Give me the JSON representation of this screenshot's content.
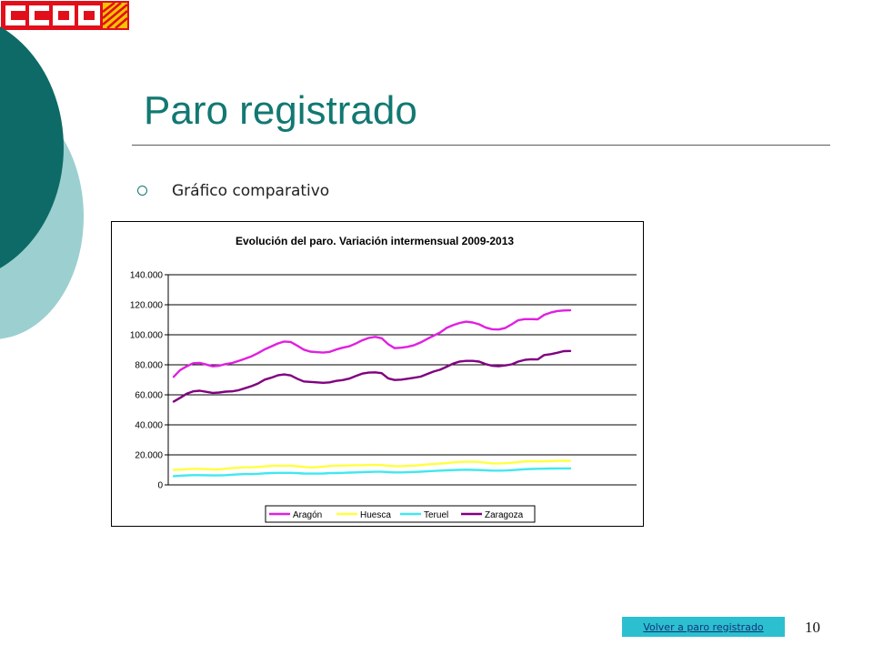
{
  "slide": {
    "title": "Paro registrado",
    "bullet": "Gráfico comparativo",
    "back_link": "Volver a paro registrado",
    "page_number": "10",
    "logo_text": "CCOO"
  },
  "colors": {
    "teal_dark": "#0d6a66",
    "teal_light": "#9ccfd0",
    "logo_red": "#e20f1b",
    "title": "#127872",
    "button": "#2cbfcf"
  },
  "chart_data": {
    "type": "line",
    "title": "Evolución del paro. Variación intermensual 2009-2013",
    "ylim": [
      0,
      140000
    ],
    "yticks": [
      "0",
      "20.000",
      "40.000",
      "60.000",
      "80.000",
      "100.000",
      "120.000",
      "140.000"
    ],
    "grid": true,
    "legend": "bottom",
    "series": [
      {
        "name": "Aragón",
        "color": "#e020e0",
        "values": [
          72000,
          76500,
          79000,
          81000,
          81300,
          80200,
          79000,
          79400,
          80500,
          81200,
          82600,
          84100,
          85700,
          87800,
          90300,
          92200,
          94200,
          95500,
          95200,
          92800,
          90100,
          88800,
          88400,
          88100,
          88600,
          90200,
          91400,
          92300,
          94100,
          96300,
          97900,
          98600,
          97700,
          93700,
          91100,
          91400,
          92000,
          93100,
          94900,
          97200,
          99400,
          101500,
          104600,
          106400,
          107900,
          108700,
          108200,
          107000,
          104800,
          103700,
          103500,
          104500,
          107000,
          109700,
          110400,
          110400,
          110300,
          113300,
          114800,
          115800,
          116200,
          116300
        ]
      },
      {
        "name": "Huesca",
        "color": "#ffff40",
        "values": [
          10000,
          10200,
          10400,
          10700,
          10700,
          10500,
          10300,
          10300,
          10800,
          11200,
          11400,
          11700,
          11700,
          12000,
          12300,
          12700,
          12800,
          12800,
          12800,
          12400,
          12000,
          11600,
          11900,
          12200,
          12600,
          12800,
          12900,
          13000,
          13100,
          13100,
          13300,
          13300,
          13200,
          12700,
          12500,
          12500,
          12700,
          12800,
          13200,
          13600,
          13900,
          14200,
          14500,
          15000,
          15300,
          15400,
          15400,
          15200,
          14800,
          14300,
          14300,
          14400,
          14700,
          15200,
          15600,
          15800,
          15600,
          15700,
          15800,
          16000,
          16000,
          16000
        ]
      },
      {
        "name": "Teruel",
        "color": "#40e8f0",
        "values": [
          5800,
          6100,
          6300,
          6500,
          6500,
          6400,
          6300,
          6300,
          6500,
          6800,
          7000,
          7200,
          7200,
          7400,
          7700,
          7900,
          8000,
          8000,
          8000,
          7800,
          7600,
          7500,
          7500,
          7600,
          7800,
          7900,
          8000,
          8200,
          8300,
          8400,
          8600,
          8700,
          8700,
          8500,
          8300,
          8300,
          8400,
          8600,
          8800,
          9000,
          9300,
          9500,
          9700,
          9900,
          10000,
          10100,
          10000,
          9900,
          9700,
          9500,
          9500,
          9600,
          9800,
          10100,
          10400,
          10600,
          10700,
          10800,
          10900,
          11000,
          11000,
          11000
        ]
      },
      {
        "name": "Zaragoza",
        "color": "#800080",
        "values": [
          55500,
          58000,
          60700,
          62300,
          62700,
          62000,
          61300,
          61500,
          62100,
          62300,
          63100,
          64400,
          65800,
          67600,
          70100,
          71400,
          73000,
          73600,
          72900,
          70700,
          68900,
          68600,
          68300,
          68000,
          68300,
          69300,
          69800,
          70800,
          72500,
          74100,
          74800,
          75000,
          74400,
          71000,
          69900,
          70100,
          70700,
          71400,
          72100,
          73900,
          75500,
          76700,
          78700,
          80800,
          82200,
          82600,
          82600,
          82100,
          80400,
          79400,
          79100,
          79600,
          80300,
          82100,
          83300,
          83700,
          83600,
          86500,
          87100,
          88000,
          89100,
          89200
        ]
      }
    ]
  }
}
